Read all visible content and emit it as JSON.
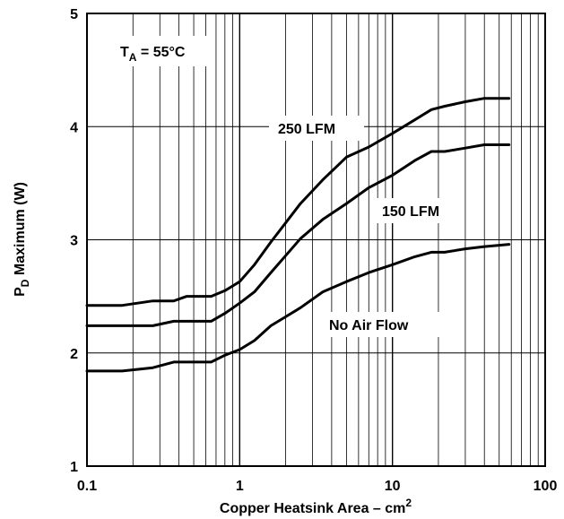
{
  "chart_data": {
    "type": "line",
    "x_scale": "log",
    "xlim": [
      0.1,
      100
    ],
    "ylim": [
      1,
      5
    ],
    "grid": true,
    "xlabel": "Copper Heatsink Area – cm",
    "xlabel_superscript": "2",
    "ylabel": "P",
    "ylabel_subscript": "D",
    "ylabel_rest": " Maximum (W)",
    "x_ticks": [
      "0.1",
      "1",
      "10",
      "100"
    ],
    "y_ticks": [
      "1",
      "2",
      "3",
      "4",
      "5"
    ],
    "annotation": {
      "main": "T",
      "sub": "A",
      "rest": " = 55°C"
    },
    "series": [
      {
        "name": "250 LFM",
        "x": [
          0.1,
          0.17,
          0.27,
          0.37,
          0.45,
          0.65,
          0.8,
          1.0,
          1.25,
          1.6,
          2.0,
          2.5,
          3.5,
          5.0,
          7.0,
          10,
          14,
          18,
          22,
          30,
          40,
          58
        ],
        "y": [
          2.42,
          2.42,
          2.46,
          2.46,
          2.5,
          2.5,
          2.55,
          2.63,
          2.78,
          2.98,
          3.15,
          3.32,
          3.53,
          3.73,
          3.82,
          3.94,
          4.06,
          4.15,
          4.18,
          4.22,
          4.25,
          4.25
        ]
      },
      {
        "name": "150 LFM",
        "x": [
          0.1,
          0.17,
          0.27,
          0.37,
          0.45,
          0.65,
          0.8,
          1.0,
          1.25,
          1.6,
          2.0,
          2.5,
          3.5,
          5.0,
          7.0,
          10,
          14,
          18,
          22,
          30,
          40,
          58
        ],
        "y": [
          2.24,
          2.24,
          2.24,
          2.28,
          2.28,
          2.28,
          2.35,
          2.44,
          2.54,
          2.71,
          2.86,
          3.01,
          3.18,
          3.32,
          3.46,
          3.57,
          3.7,
          3.78,
          3.78,
          3.81,
          3.84,
          3.84
        ]
      },
      {
        "name": "No Air Flow",
        "x": [
          0.1,
          0.17,
          0.27,
          0.37,
          0.45,
          0.65,
          0.8,
          1.0,
          1.25,
          1.6,
          2.0,
          2.5,
          3.5,
          5.0,
          7.0,
          10,
          14,
          18,
          22,
          30,
          40,
          58
        ],
        "y": [
          1.84,
          1.84,
          1.87,
          1.92,
          1.92,
          1.92,
          1.98,
          2.03,
          2.11,
          2.24,
          2.32,
          2.4,
          2.54,
          2.63,
          2.71,
          2.78,
          2.85,
          2.89,
          2.89,
          2.92,
          2.94,
          2.96
        ]
      }
    ]
  }
}
